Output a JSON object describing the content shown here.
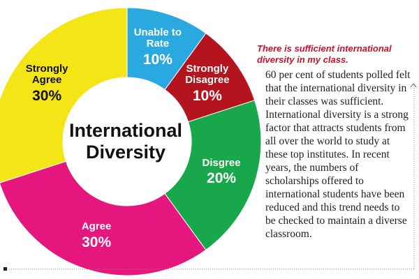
{
  "chart_data": {
    "type": "pie",
    "title": "International Diversity",
    "categories": [
      "Unable to Rate",
      "Strongly Disagree",
      "Disgree",
      "Agree",
      "Strongly Agree"
    ],
    "values": [
      10,
      10,
      20,
      30,
      30
    ],
    "value_labels": [
      "10%",
      "10%",
      "20%",
      "30%",
      "30%"
    ],
    "colors": [
      "#2aa9e0",
      "#b3141e",
      "#18a84b",
      "#e5177e",
      "#f4e516"
    ],
    "annotation_title": "There is sufficient international diversity in my class.",
    "annotation": "60 per cent of students polled felt that the international diversity in their classes was sufficient. International diversity is a strong factor that attracts students from all over the world to study at these top institutes. In recent years, the numbers of scholarships offered to international students have been reduced and this trend needs to be checked to maintain a diverse classroom."
  }
}
